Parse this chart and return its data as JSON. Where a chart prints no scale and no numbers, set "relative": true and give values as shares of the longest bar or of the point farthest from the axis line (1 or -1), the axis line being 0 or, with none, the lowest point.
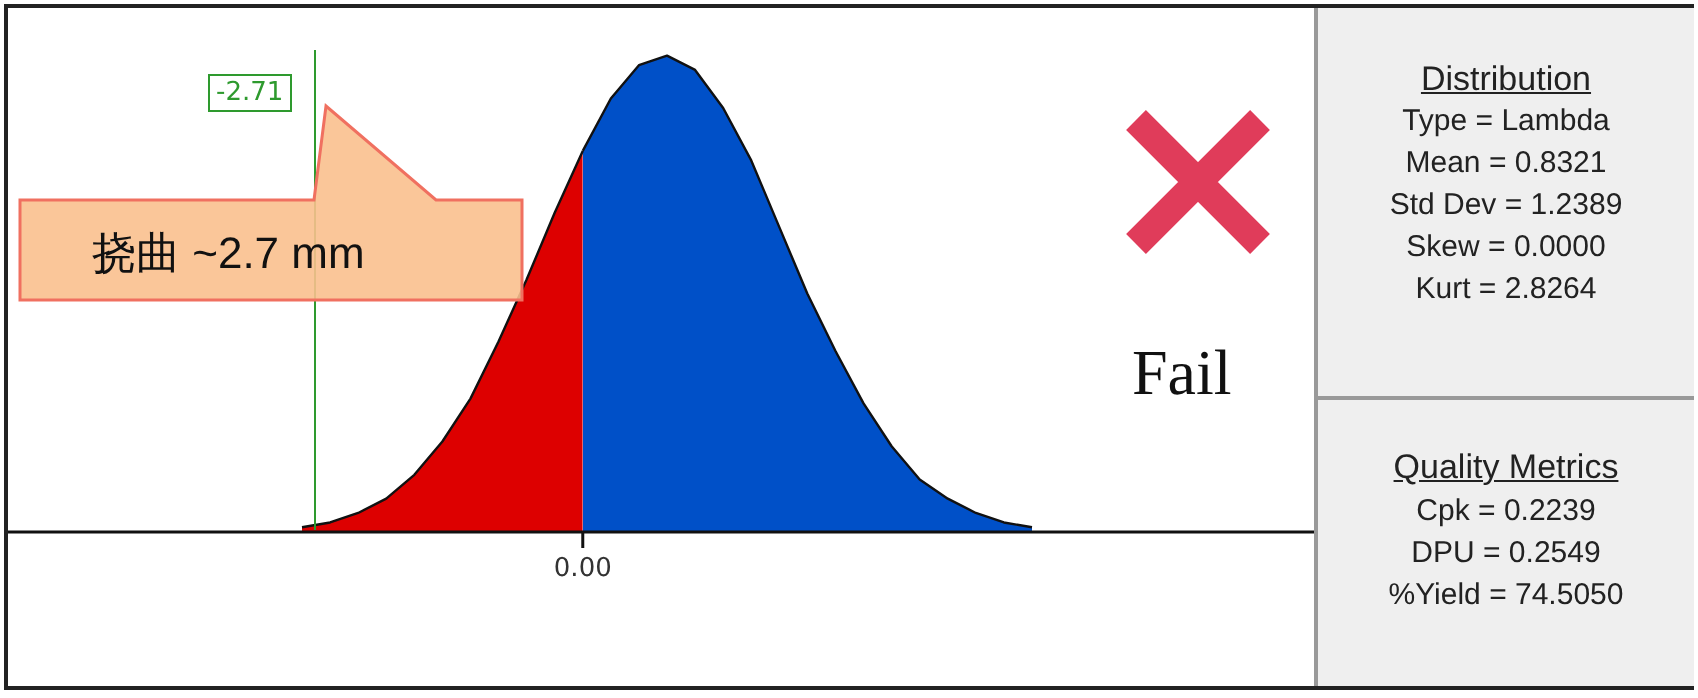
{
  "chart_data": {
    "type": "area",
    "relative": true,
    "categories": [
      null,
      null,
      null,
      null,
      null,
      null,
      null,
      null,
      null,
      null,
      null,
      null,
      null,
      null,
      null,
      null,
      null,
      null,
      null,
      null,
      null,
      null,
      null,
      null,
      null,
      null,
      null
    ],
    "series": [
      {
        "color": "#dd0000",
        "values": [
          0.01,
          0.02,
          0.04,
          0.07,
          0.12,
          0.19,
          0.28,
          0.4,
          0.53,
          0.67,
          0.8,
          null,
          null,
          null,
          null,
          null,
          null,
          null,
          null,
          null,
          null,
          null,
          null,
          null,
          null,
          null,
          null
        ]
      },
      {
        "color": "#0050c8",
        "values": [
          null,
          null,
          null,
          null,
          null,
          null,
          null,
          null,
          null,
          null,
          0.8,
          0.91,
          0.98,
          1,
          0.97,
          0.89,
          0.78,
          0.64,
          0.5,
          0.38,
          0.27,
          0.18,
          0.11,
          0.07,
          0.04,
          0.02,
          0.01
        ]
      }
    ],
    "annotations": [
      "挠曲 ~2.7 mm",
      "Fail",
      "Distribution",
      "Type = Lambda",
      "Mean = 0.8321",
      "Std Dev = 1.2389",
      "Skew = 0.0000",
      "Kurt = 2.8264",
      "Quality Metrics",
      "Cpk = 0.2239",
      "DPU = 0.2549",
      "%Yield = 74.5050",
      "-2.71",
      "0.00"
    ],
    "legend": false
  }
}
